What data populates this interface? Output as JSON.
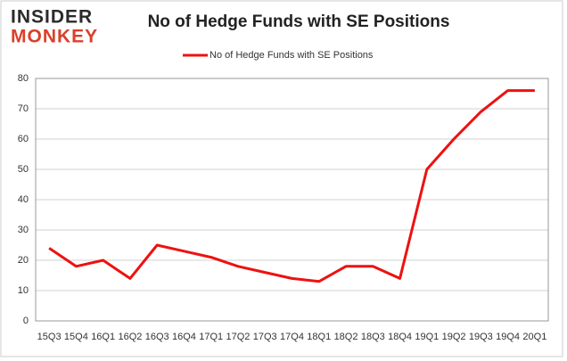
{
  "logo": {
    "line1": "INSIDER",
    "line2": "MONKEY"
  },
  "chart_data": {
    "type": "line",
    "title": "No of Hedge Funds with SE Positions",
    "categories": [
      "15Q3",
      "15Q4",
      "16Q1",
      "16Q2",
      "16Q3",
      "16Q4",
      "17Q1",
      "17Q2",
      "17Q3",
      "17Q4",
      "18Q1",
      "18Q2",
      "18Q3",
      "18Q4",
      "19Q1",
      "19Q2",
      "19Q3",
      "19Q4",
      "20Q1"
    ],
    "series": [
      {
        "name": "No of Hedge Funds with SE Positions",
        "color": "#ee1111",
        "values": [
          24,
          18,
          20,
          14,
          25,
          23,
          21,
          18,
          16,
          14,
          13,
          18,
          18,
          14,
          50,
          60,
          69,
          76,
          76
        ]
      }
    ],
    "ylim": [
      0,
      80
    ],
    "yticks": [
      0,
      10,
      20,
      30,
      40,
      50,
      60,
      70,
      80
    ],
    "grid": true,
    "legend": "top"
  }
}
